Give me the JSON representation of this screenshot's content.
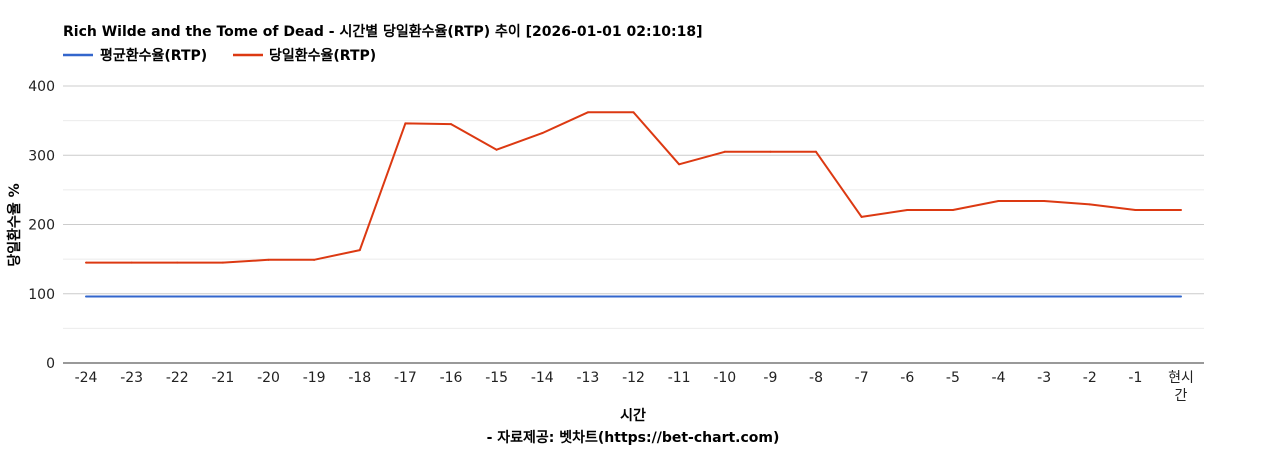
{
  "chart_data": {
    "type": "line",
    "title": "Rich Wilde and the Tome of Dead - 시간별 당일환수율(RTP) 추이 [2026-01-01 02:10:18]",
    "xlabel": "시간",
    "ylabel": "당일환수율 %",
    "source": "- 자료제공: 벳차트(https://bet-chart.com)",
    "categories": [
      "-24",
      "-23",
      "-22",
      "-21",
      "-20",
      "-19",
      "-18",
      "-17",
      "-16",
      "-15",
      "-14",
      "-13",
      "-12",
      "-11",
      "-10",
      "-9",
      "-8",
      "-7",
      "-6",
      "-5",
      "-4",
      "-3",
      "-2",
      "-1",
      "현시간"
    ],
    "ylim": [
      0,
      400
    ],
    "yticks": [
      0,
      100,
      200,
      300,
      400
    ],
    "grid": true,
    "legend_position": "top-left",
    "series": [
      {
        "name": "평균환수율(RTP)",
        "color": "#3366cc",
        "values": [
          96,
          96,
          96,
          96,
          96,
          96,
          96,
          96,
          96,
          96,
          96,
          96,
          96,
          96,
          96,
          96,
          96,
          96,
          96,
          96,
          96,
          96,
          96,
          96,
          96
        ]
      },
      {
        "name": "당일환수율(RTP)",
        "color": "#dc3912",
        "values": [
          145,
          145,
          145,
          145,
          149,
          149,
          163,
          346,
          345,
          308,
          332,
          362,
          362,
          287,
          305,
          305,
          305,
          211,
          221,
          221,
          234,
          234,
          229,
          221,
          221
        ]
      }
    ]
  }
}
